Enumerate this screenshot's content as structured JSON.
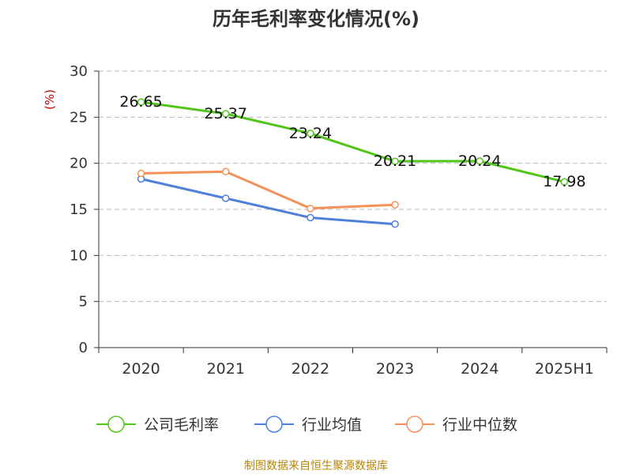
{
  "chart_data": {
    "type": "line",
    "title": "历年毛利率变化情况(%)",
    "ylabel": "(%)",
    "categories": [
      "2020",
      "2021",
      "2022",
      "2023",
      "2024",
      "2025H1"
    ],
    "ylim": [
      0,
      30
    ],
    "yticks": [
      0,
      5,
      10,
      15,
      20,
      25,
      30
    ],
    "grid": true,
    "legend_position": "bottom",
    "series": [
      {
        "name": "公司毛利率",
        "color": "#52c41a",
        "values": [
          26.65,
          25.37,
          23.24,
          20.21,
          20.24,
          17.98
        ],
        "labels": [
          "26.65",
          "25.37",
          "23.24",
          "20.21",
          "20.24",
          "17.98"
        ]
      },
      {
        "name": "行业均值",
        "color": "#4e7fd9",
        "values": [
          18.3,
          16.2,
          14.1,
          13.4,
          null,
          null
        ]
      },
      {
        "name": "行业中位数",
        "color": "#f4915a",
        "values": [
          18.9,
          19.1,
          15.1,
          15.5,
          null,
          null
        ]
      }
    ],
    "source": "制图数据来自恒生聚源数据库"
  }
}
